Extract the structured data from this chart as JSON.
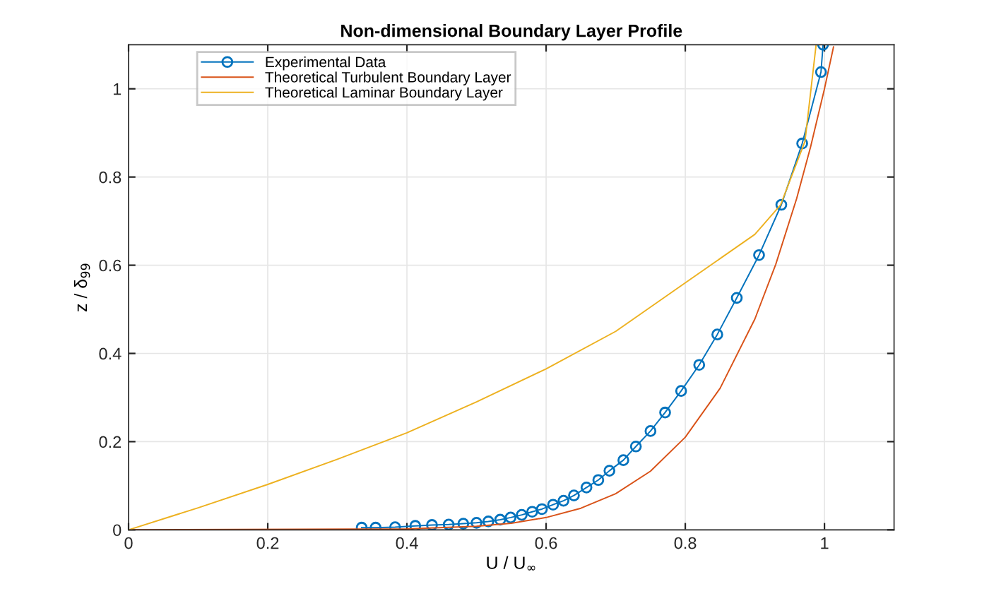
{
  "chart_data": {
    "type": "line",
    "title": "Non-dimensional Boundary Layer Profile",
    "xlabel": "U / U$_{∞}$",
    "ylabel": "z / δ$_{99}$",
    "xlim": [
      0,
      1.1
    ],
    "ylim": [
      0,
      1.1
    ],
    "xticks": [
      0,
      0.2,
      0.4,
      0.6,
      0.8,
      1
    ],
    "yticks": [
      0,
      0.2,
      0.4,
      0.6,
      0.8,
      1
    ],
    "grid": true,
    "legend": "top left",
    "series": [
      {
        "name": "Experimental Data",
        "color": "#0072bd",
        "marker": "circle",
        "x": [
          0.335,
          0.355,
          0.383,
          0.412,
          0.436,
          0.46,
          0.481,
          0.5,
          0.517,
          0.534,
          0.549,
          0.565,
          0.58,
          0.594,
          0.61,
          0.625,
          0.64,
          0.658,
          0.675,
          0.691,
          0.711,
          0.729,
          0.75,
          0.771,
          0.794,
          0.82,
          0.846,
          0.874,
          0.906,
          0.938,
          0.968,
          0.995,
          0.998
        ],
        "values": [
          0.005,
          0.005,
          0.006,
          0.009,
          0.011,
          0.012,
          0.014,
          0.016,
          0.019,
          0.023,
          0.028,
          0.034,
          0.041,
          0.047,
          0.057,
          0.066,
          0.078,
          0.096,
          0.113,
          0.134,
          0.158,
          0.189,
          0.224,
          0.266,
          0.315,
          0.374,
          0.443,
          0.526,
          0.623,
          0.737,
          0.876,
          1.038,
          1.1
        ]
      },
      {
        "name": "Theoretical Turbulent Boundary Layer",
        "color": "#d95319",
        "marker": "none",
        "x": [
          0,
          0.4,
          0.5,
          0.55,
          0.6,
          0.65,
          0.7,
          0.75,
          0.8,
          0.85,
          0.9,
          0.93,
          0.96,
          0.98,
          1.0,
          1.013
        ],
        "values": [
          0,
          0.002,
          0.008,
          0.015,
          0.028,
          0.049,
          0.082,
          0.133,
          0.21,
          0.321,
          0.478,
          0.602,
          0.751,
          0.868,
          1.0,
          1.095
        ]
      },
      {
        "name": "Theoretical Laminar Boundary Layer",
        "color": "#edb120",
        "marker": "none",
        "x": [
          0,
          0.1,
          0.2,
          0.3,
          0.4,
          0.5,
          0.6,
          0.7,
          0.8,
          0.9,
          0.937,
          0.972,
          0.988
        ],
        "values": [
          0,
          0.05,
          0.103,
          0.16,
          0.22,
          0.29,
          0.365,
          0.45,
          0.56,
          0.67,
          0.737,
          0.881,
          1.1
        ]
      }
    ]
  }
}
